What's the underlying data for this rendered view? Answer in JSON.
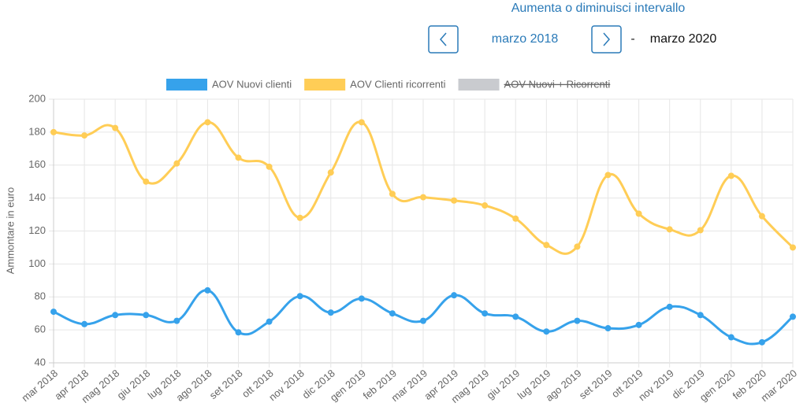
{
  "header": {
    "hint": "Aumenta o diminuisci intervallo",
    "start": "marzo 2018",
    "separator": "-",
    "end": "marzo 2020"
  },
  "chart_data": {
    "type": "line",
    "y_label": "Ammontare in euro",
    "categories": [
      "mar 2018",
      "apr 2018",
      "mag 2018",
      "giu 2018",
      "lug 2018",
      "ago 2018",
      "set 2018",
      "ott 2018",
      "nov 2018",
      "dic 2018",
      "gen 2019",
      "feb 2019",
      "mar 2019",
      "apr 2019",
      "mag 2019",
      "giu 2019",
      "lug 2019",
      "ago 2019",
      "set 2019",
      "ott 2019",
      "nov 2019",
      "dic 2019",
      "gen 2020",
      "feb 2020",
      "mar 2020"
    ],
    "series": [
      {
        "name": "AOV Nuovi clienti",
        "color": "#36a2eb",
        "values": [
          71,
          63.5,
          69,
          69,
          65.5,
          84,
          58.5,
          65,
          80.5,
          70.5,
          79,
          70,
          65.5,
          81,
          70,
          68,
          59,
          65.5,
          61,
          63,
          74,
          69,
          55.5,
          52.5,
          68
        ]
      },
      {
        "name": "AOV Clienti ricorrenti",
        "color": "#ffcd56",
        "values": [
          180,
          178,
          182.5,
          150,
          161,
          186,
          164.5,
          159,
          128,
          155.5,
          186,
          142.5,
          140.5,
          138.5,
          135.5,
          127.5,
          111.5,
          110.5,
          154,
          130.5,
          121,
          120.5,
          153.5,
          129,
          110
        ]
      }
    ],
    "hidden_series": [
      {
        "name": "AOV Nuovi + Ricorrenti",
        "color": "#c9cbcf"
      }
    ],
    "ylim": [
      40,
      200
    ],
    "yticks": [
      40,
      60,
      80,
      100,
      120,
      140,
      160,
      180,
      200
    ],
    "grid": true,
    "legend": "top"
  }
}
